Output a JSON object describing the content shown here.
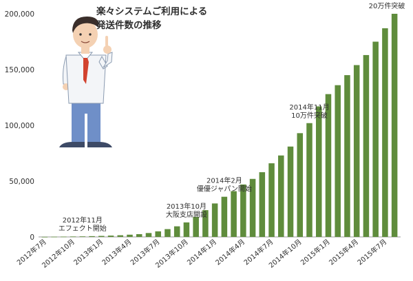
{
  "title": {
    "line1": "楽々システムご利用による",
    "line2": "発送件数の推移"
  },
  "colors": {
    "bar": "#5f8c3c",
    "text": "#2f2f2f",
    "axis": "#9a9a9a"
  },
  "illustration": {
    "subject": "businessman pointing up",
    "icon": "man-pointing-icon"
  },
  "chart_data": {
    "type": "bar",
    "title": "楽々システムご利用による発送件数の推移",
    "xlabel": "",
    "ylabel": "",
    "ylim": [
      0,
      200000
    ],
    "yticks": [
      "0",
      "50,000",
      "100,000",
      "150,000",
      "200,000"
    ],
    "grid": false,
    "categories": [
      "2012年7月",
      "2012年8月",
      "2012年9月",
      "2012年10月",
      "2012年11月",
      "2012年12月",
      "2013年1月",
      "2013年2月",
      "2013年3月",
      "2013年4月",
      "2013年5月",
      "2013年6月",
      "2013年7月",
      "2013年8月",
      "2013年9月",
      "2013年10月",
      "2013年11月",
      "2013年12月",
      "2014年1月",
      "2014年2月",
      "2014年3月",
      "2014年4月",
      "2014年5月",
      "2014年6月",
      "2014年7月",
      "2014年8月",
      "2014年9月",
      "2014年10月",
      "2014年11月",
      "2014年12月",
      "2015年1月",
      "2015年2月",
      "2015年3月",
      "2015年4月",
      "2015年5月",
      "2015年6月",
      "2015年7月",
      "2015年8月"
    ],
    "tick_labels": [
      "2012年7月",
      "2012年10月",
      "2013年1月",
      "2013年4月",
      "2013年7月",
      "2013年10月",
      "2014年1月",
      "2014年4月",
      "2014年7月",
      "2014年10月",
      "2015年1月",
      "2015年4月",
      "2015年7月"
    ],
    "values": [
      100,
      200,
      300,
      400,
      500,
      700,
      900,
      1200,
      1500,
      2000,
      2500,
      3500,
      5000,
      7000,
      9500,
      13000,
      18000,
      24000,
      30000,
      36000,
      41000,
      47000,
      52000,
      58000,
      66000,
      73000,
      81000,
      93000,
      102000,
      117000,
      128000,
      136000,
      145000,
      154000,
      163000,
      175000,
      187000,
      200000
    ],
    "annotations": [
      {
        "category": "2012年11月",
        "lines": [
          "2012年11月",
          "エフェクト開始"
        ]
      },
      {
        "category": "2013年10月",
        "lines": [
          "2013年10月",
          "大阪支店開設"
        ]
      },
      {
        "category": "2014年2月",
        "lines": [
          "2014年2月",
          "優優ジャパン開始"
        ]
      },
      {
        "category": "2014年11月",
        "lines": [
          "2014年11月",
          "10万件突破"
        ]
      },
      {
        "category": "2015年8月",
        "lines": [
          "20万件突破"
        ]
      }
    ]
  }
}
